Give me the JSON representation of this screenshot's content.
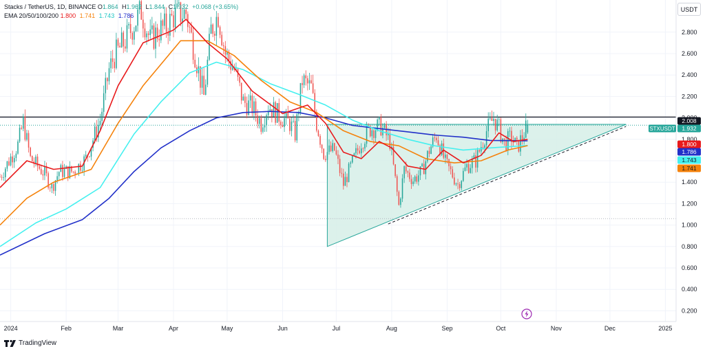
{
  "legend": {
    "symbol": "Stacks / TetherUS, 1D, BINANCE",
    "o_label": "O",
    "o": "1.864",
    "h_label": "H",
    "h": "1.962",
    "l_label": "L",
    "l": "1.844",
    "c_label": "C",
    "c": "1.932",
    "change": "+0.068 (+3.65%)",
    "ema_title": "EMA 20/50/100/200",
    "ema20": "1.800",
    "ema50": "1.741",
    "ema100": "1.743",
    "ema200": "1.786"
  },
  "currency_button": "USDT",
  "branding": "TradingView",
  "colors": {
    "up": "#26a69a",
    "down": "#ef5350",
    "ema20": "#e8191b",
    "ema50": "#f5820b",
    "ema100": "#44f0ef",
    "ema200": "#2130c9",
    "triangle_fill": "#d6efe8",
    "triangle_stroke": "#26a69a",
    "resistance": "#131722"
  },
  "chart_data": {
    "type": "candlestick",
    "y_range": [
      0.1,
      3.1
    ],
    "y_ticks": [
      "0.200",
      "0.400",
      "0.600",
      "0.800",
      "1.000",
      "1.200",
      "1.400",
      "1.600",
      "1.800",
      "2.000",
      "2.200",
      "2.400",
      "2.600",
      "2.800"
    ],
    "x_ticks": [
      {
        "label": "2024",
        "date": "2024-01-01"
      },
      {
        "label": "Feb",
        "date": "2024-02-01"
      },
      {
        "label": "Mar",
        "date": "2024-03-01"
      },
      {
        "label": "Apr",
        "date": "2024-04-01"
      },
      {
        "label": "May",
        "date": "2024-05-01"
      },
      {
        "label": "Jun",
        "date": "2024-06-01"
      },
      {
        "label": "Jul",
        "date": "2024-07-01"
      },
      {
        "label": "Aug",
        "date": "2024-08-01"
      },
      {
        "label": "Sep",
        "date": "2024-09-01"
      },
      {
        "label": "Oct",
        "date": "2024-10-01"
      },
      {
        "label": "Nov",
        "date": "2024-11-01"
      },
      {
        "label": "Dec",
        "date": "2024-12-01"
      },
      {
        "label": "2025",
        "date": "2025-01-01"
      }
    ],
    "x_range": [
      "2023-12-26",
      "2025-01-07"
    ],
    "price_keypoints": [
      [
        "2023-12-26",
        1.45
      ],
      [
        "2024-01-05",
        1.75
      ],
      [
        "2024-01-08",
        1.96
      ],
      [
        "2024-01-12",
        1.62
      ],
      [
        "2024-01-20",
        1.48
      ],
      [
        "2024-01-24",
        1.35
      ],
      [
        "2024-01-28",
        1.5
      ],
      [
        "2024-02-05",
        1.5
      ],
      [
        "2024-02-12",
        1.62
      ],
      [
        "2024-02-20",
        1.98
      ],
      [
        "2024-02-25",
        2.45
      ],
      [
        "2024-02-28",
        2.58
      ],
      [
        "2024-03-05",
        2.72
      ],
      [
        "2024-03-10",
        2.88
      ],
      [
        "2024-03-14",
        3.0
      ],
      [
        "2024-03-19",
        2.72
      ],
      [
        "2024-03-24",
        2.82
      ],
      [
        "2024-03-28",
        2.85
      ],
      [
        "2024-04-01",
        2.95
      ],
      [
        "2024-04-08",
        2.98
      ],
      [
        "2024-04-13",
        2.6
      ],
      [
        "2024-04-18",
        2.2
      ],
      [
        "2024-04-22",
        2.82
      ],
      [
        "2024-04-26",
        2.97
      ],
      [
        "2024-04-30",
        2.6
      ],
      [
        "2024-05-05",
        2.45
      ],
      [
        "2024-05-10",
        2.15
      ],
      [
        "2024-05-15",
        2.1
      ],
      [
        "2024-05-20",
        1.95
      ],
      [
        "2024-05-24",
        2.12
      ],
      [
        "2024-05-30",
        2.02
      ],
      [
        "2024-06-05",
        1.95
      ],
      [
        "2024-06-08",
        1.85
      ],
      [
        "2024-06-12",
        2.35
      ],
      [
        "2024-06-17",
        2.28
      ],
      [
        "2024-06-20",
        1.95
      ],
      [
        "2024-06-24",
        1.67
      ],
      [
        "2024-06-30",
        1.7
      ],
      [
        "2024-07-05",
        1.38
      ],
      [
        "2024-07-10",
        1.58
      ],
      [
        "2024-07-15",
        1.78
      ],
      [
        "2024-07-20",
        1.9
      ],
      [
        "2024-07-26",
        1.92
      ],
      [
        "2024-07-31",
        1.78
      ],
      [
        "2024-08-05",
        1.18
      ],
      [
        "2024-08-08",
        1.52
      ],
      [
        "2024-08-13",
        1.42
      ],
      [
        "2024-08-18",
        1.5
      ],
      [
        "2024-08-22",
        1.7
      ],
      [
        "2024-08-26",
        1.84
      ],
      [
        "2024-08-31",
        1.58
      ],
      [
        "2024-09-07",
        1.38
      ],
      [
        "2024-09-12",
        1.55
      ],
      [
        "2024-09-17",
        1.6
      ],
      [
        "2024-09-23",
        1.88
      ],
      [
        "2024-09-27",
        2.0
      ],
      [
        "2024-09-30",
        1.9
      ],
      [
        "2024-10-03",
        1.76
      ],
      [
        "2024-10-07",
        1.82
      ],
      [
        "2024-10-10",
        1.72
      ],
      [
        "2024-10-14",
        1.86
      ],
      [
        "2024-10-16",
        1.932
      ]
    ],
    "ema20": [
      [
        "2023-12-26",
        1.35
      ],
      [
        "2024-01-10",
        1.6
      ],
      [
        "2024-01-25",
        1.52
      ],
      [
        "2024-02-10",
        1.55
      ],
      [
        "2024-02-20",
        1.88
      ],
      [
        "2024-03-01",
        2.3
      ],
      [
        "2024-03-15",
        2.7
      ],
      [
        "2024-04-01",
        2.82
      ],
      [
        "2024-04-08",
        2.92
      ],
      [
        "2024-04-20",
        2.7
      ],
      [
        "2024-05-01",
        2.55
      ],
      [
        "2024-05-15",
        2.25
      ],
      [
        "2024-06-01",
        2.04
      ],
      [
        "2024-06-15",
        2.12
      ],
      [
        "2024-06-25",
        1.95
      ],
      [
        "2024-07-05",
        1.68
      ],
      [
        "2024-07-15",
        1.62
      ],
      [
        "2024-07-25",
        1.78
      ],
      [
        "2024-08-01",
        1.72
      ],
      [
        "2024-08-10",
        1.55
      ],
      [
        "2024-08-20",
        1.52
      ],
      [
        "2024-08-30",
        1.7
      ],
      [
        "2024-09-10",
        1.58
      ],
      [
        "2024-09-20",
        1.65
      ],
      [
        "2024-09-30",
        1.86
      ],
      [
        "2024-10-08",
        1.78
      ],
      [
        "2024-10-16",
        1.8
      ]
    ],
    "ema50": [
      [
        "2023-12-26",
        1.0
      ],
      [
        "2024-01-10",
        1.25
      ],
      [
        "2024-01-25",
        1.4
      ],
      [
        "2024-02-15",
        1.52
      ],
      [
        "2024-03-01",
        1.95
      ],
      [
        "2024-03-15",
        2.3
      ],
      [
        "2024-04-05",
        2.72
      ],
      [
        "2024-04-20",
        2.72
      ],
      [
        "2024-05-05",
        2.58
      ],
      [
        "2024-05-20",
        2.35
      ],
      [
        "2024-06-05",
        2.15
      ],
      [
        "2024-06-20",
        2.05
      ],
      [
        "2024-07-05",
        1.88
      ],
      [
        "2024-07-20",
        1.78
      ],
      [
        "2024-08-05",
        1.74
      ],
      [
        "2024-08-20",
        1.62
      ],
      [
        "2024-09-05",
        1.58
      ],
      [
        "2024-09-20",
        1.6
      ],
      [
        "2024-10-05",
        1.7
      ],
      [
        "2024-10-16",
        1.741
      ]
    ],
    "ema100": [
      [
        "2023-12-26",
        0.8
      ],
      [
        "2024-01-15",
        1.02
      ],
      [
        "2024-02-01",
        1.15
      ],
      [
        "2024-02-20",
        1.35
      ],
      [
        "2024-03-10",
        1.85
      ],
      [
        "2024-03-25",
        2.15
      ],
      [
        "2024-04-10",
        2.42
      ],
      [
        "2024-04-25",
        2.52
      ],
      [
        "2024-05-10",
        2.45
      ],
      [
        "2024-05-25",
        2.32
      ],
      [
        "2024-06-10",
        2.22
      ],
      [
        "2024-06-25",
        2.12
      ],
      [
        "2024-07-10",
        1.98
      ],
      [
        "2024-07-25",
        1.88
      ],
      [
        "2024-08-10",
        1.8
      ],
      [
        "2024-08-25",
        1.74
      ],
      [
        "2024-09-10",
        1.7
      ],
      [
        "2024-09-25",
        1.72
      ],
      [
        "2024-10-16",
        1.743
      ]
    ],
    "ema200": [
      [
        "2023-12-26",
        0.72
      ],
      [
        "2024-01-20",
        0.92
      ],
      [
        "2024-02-10",
        1.05
      ],
      [
        "2024-02-25",
        1.25
      ],
      [
        "2024-03-10",
        1.5
      ],
      [
        "2024-03-25",
        1.72
      ],
      [
        "2024-04-10",
        1.88
      ],
      [
        "2024-04-25",
        2.0
      ],
      [
        "2024-05-10",
        2.05
      ],
      [
        "2024-05-25",
        2.06
      ],
      [
        "2024-06-10",
        2.05
      ],
      [
        "2024-06-25",
        2.0
      ],
      [
        "2024-07-10",
        1.93
      ],
      [
        "2024-07-25",
        1.9
      ],
      [
        "2024-08-10",
        1.87
      ],
      [
        "2024-08-25",
        1.84
      ],
      [
        "2024-09-10",
        1.82
      ],
      [
        "2024-09-25",
        1.79
      ],
      [
        "2024-10-16",
        1.786
      ]
    ],
    "resistance_level": 2.008,
    "dotted_support_level": 1.06,
    "last_price_level": 1.932,
    "triangle": [
      [
        "2024-06-26",
        0.8
      ],
      [
        "2024-06-26",
        1.94
      ],
      [
        "2024-12-10",
        1.94
      ]
    ],
    "dashed_trendline": [
      [
        "2024-07-30",
        1.01
      ],
      [
        "2024-12-10",
        1.92
      ]
    ],
    "price_labels": [
      {
        "text": "2.008",
        "value": 2.008,
        "bg": "#131722",
        "fg": "#ffffff"
      },
      {
        "text": "1.932",
        "value": 1.932,
        "bg": "#26a69a",
        "fg": "#ffffff"
      },
      {
        "text": "1.800",
        "value": 1.8,
        "bg": "#e8191b",
        "fg": "#ffffff"
      },
      {
        "text": "1.786",
        "value": 1.786,
        "bg": "#2130c9",
        "fg": "#ffffff"
      },
      {
        "text": "1.743",
        "value": 1.743,
        "bg": "#44f0ef",
        "fg": "#131722"
      },
      {
        "text": "1.741",
        "value": 1.741,
        "bg": "#f5820b",
        "fg": "#131722"
      }
    ],
    "symbol_tag": "STXUSDT"
  }
}
